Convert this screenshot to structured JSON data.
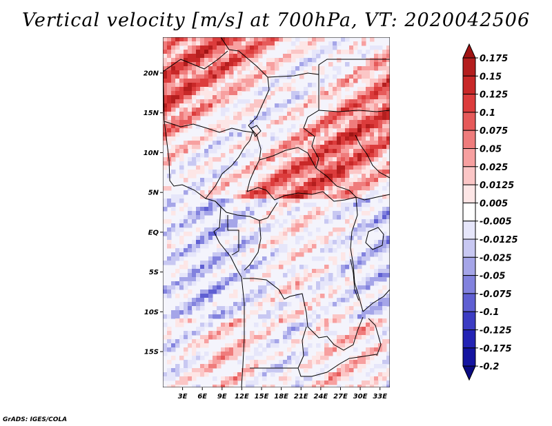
{
  "title": "Vertical velocity [m/s] at 700hPa, VT: 2020042506",
  "credit": "GrADS: IGES/COLA",
  "map": {
    "lat_range": [
      -19.5,
      24.5
    ],
    "lon_range": [
      0,
      34.5
    ],
    "lat_ticks": [
      {
        "value": 20,
        "label": "20N"
      },
      {
        "value": 15,
        "label": "15N"
      },
      {
        "value": 10,
        "label": "10N"
      },
      {
        "value": 5,
        "label": "5N"
      },
      {
        "value": 0,
        "label": "EQ"
      },
      {
        "value": -5,
        "label": "5S"
      },
      {
        "value": -10,
        "label": "10S"
      },
      {
        "value": -15,
        "label": "15S"
      }
    ],
    "lon_ticks": [
      {
        "value": 3,
        "label": "3E"
      },
      {
        "value": 6,
        "label": "6E"
      },
      {
        "value": 9,
        "label": "9E"
      },
      {
        "value": 12,
        "label": "12E"
      },
      {
        "value": 15,
        "label": "15E"
      },
      {
        "value": 18,
        "label": "18E"
      },
      {
        "value": 21,
        "label": "21E"
      },
      {
        "value": 24,
        "label": "24E"
      },
      {
        "value": 27,
        "label": "27E"
      },
      {
        "value": 30,
        "label": "30E"
      },
      {
        "value": 33,
        "label": "33E"
      }
    ]
  },
  "colorbar": {
    "labels": [
      "0.175",
      "0.15",
      "0.125",
      "0.1",
      "0.075",
      "0.05",
      "0.025",
      "0.0125",
      "0.005",
      "-0.005",
      "-0.0125",
      "-0.025",
      "-0.05",
      "-0.075",
      "-0.1",
      "-0.125",
      "-0.175",
      "-0.2"
    ],
    "colors": [
      "#a01414",
      "#b41e1e",
      "#c82828",
      "#dc3c3c",
      "#e65a5a",
      "#ef7c7c",
      "#f7a0a0",
      "#fbc6c6",
      "#fde6e6",
      "#ffffff",
      "#e6e6fa",
      "#c8c8f2",
      "#a5a5e8",
      "#8282de",
      "#5f5fd2",
      "#3c3cc3",
      "#2323b4",
      "#1414a0",
      "#0a0a82"
    ]
  }
}
